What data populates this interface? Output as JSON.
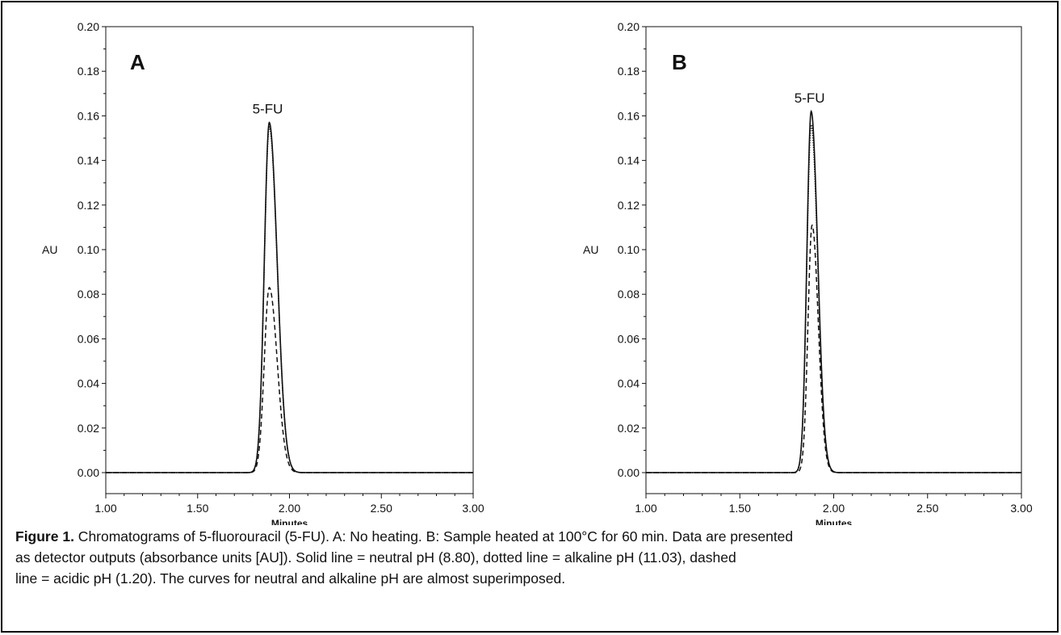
{
  "chart_data": [
    {
      "type": "line",
      "panel_label": "A",
      "peak_label": "5-FU",
      "xlabel": "Minutes",
      "ylabel": "AU",
      "xlim": [
        1.0,
        3.0
      ],
      "ylim": [
        0.0,
        0.2
      ],
      "x_ticks": [
        "1.00",
        "1.50",
        "2.00",
        "2.50",
        "3.00"
      ],
      "y_ticks": [
        "0.00",
        "0.02",
        "0.04",
        "0.06",
        "0.08",
        "0.10",
        "0.12",
        "0.14",
        "0.16",
        "0.18",
        "0.20"
      ],
      "grid": false,
      "series": [
        {
          "style": "solid",
          "peak_x": 1.89,
          "peak_y": 0.157,
          "sigma_left": 0.027,
          "sigma_right": 0.043
        },
        {
          "style": "dotted",
          "peak_x": 1.89,
          "peak_y": 0.155,
          "sigma_left": 0.027,
          "sigma_right": 0.043
        },
        {
          "style": "dashed",
          "peak_x": 1.89,
          "peak_y": 0.083,
          "sigma_left": 0.027,
          "sigma_right": 0.043
        }
      ]
    },
    {
      "type": "line",
      "panel_label": "B",
      "peak_label": "5-FU",
      "xlabel": "Minutes",
      "ylabel": "AU",
      "xlim": [
        1.0,
        3.0
      ],
      "ylim": [
        0.0,
        0.2
      ],
      "x_ticks": [
        "1.00",
        "1.50",
        "2.00",
        "2.50",
        "3.00"
      ],
      "y_ticks": [
        "0.00",
        "0.02",
        "0.04",
        "0.06",
        "0.08",
        "0.10",
        "0.12",
        "0.14",
        "0.16",
        "0.18",
        "0.20"
      ],
      "grid": false,
      "series": [
        {
          "style": "solid",
          "peak_x": 1.88,
          "peak_y": 0.162,
          "sigma_left": 0.023,
          "sigma_right": 0.035
        },
        {
          "style": "dotted",
          "peak_x": 1.88,
          "peak_y": 0.156,
          "sigma_left": 0.023,
          "sigma_right": 0.035
        },
        {
          "style": "dashed",
          "peak_x": 1.885,
          "peak_y": 0.111,
          "sigma_left": 0.022,
          "sigma_right": 0.033
        }
      ]
    }
  ],
  "caption": {
    "label": "Figure 1.",
    "line1": " Chromatograms of 5-fluorouracil (5-FU). A: No heating. B: Sample heated at 100°C for 60 min. Data are presented",
    "line2": "as detector outputs (absorbance units [AU]). Solid line = neutral pH (8.80), dotted line = alkaline pH (11.03), dashed",
    "line3": "line = acidic pH (1.20). The curves for neutral and alkaline pH are almost superimposed."
  },
  "colors": {
    "ink": "#111111",
    "frame": "#000000",
    "background": "#ffffff"
  }
}
